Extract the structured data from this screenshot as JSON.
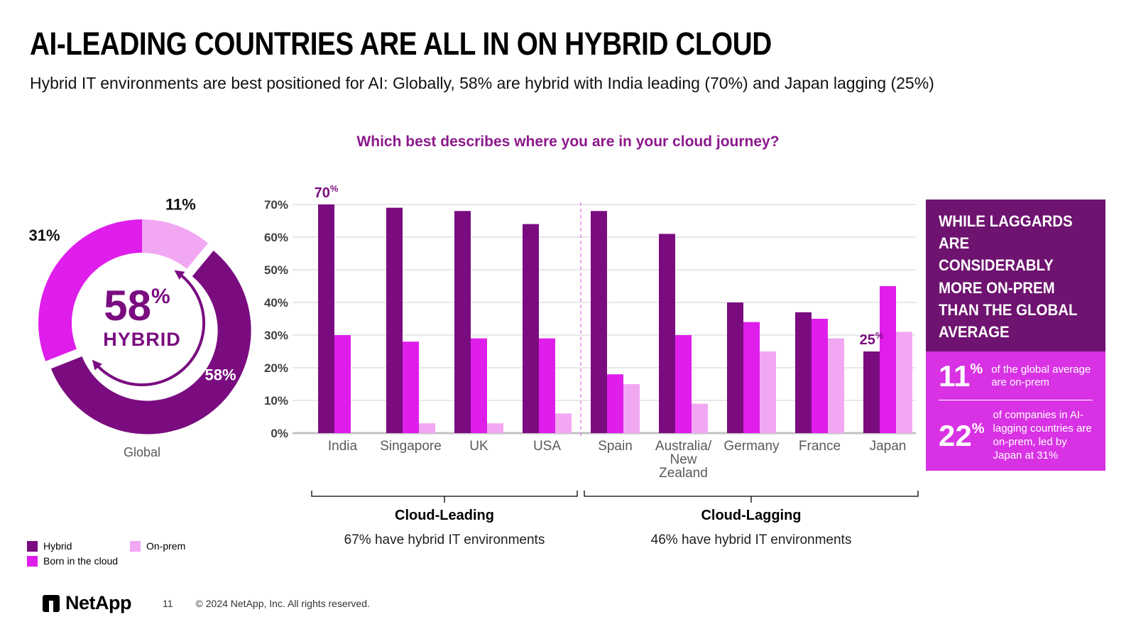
{
  "slide": {
    "title": "AI-LEADING COUNTRIES ARE ALL IN ON HYBRID CLOUD",
    "subtitle": "Hybrid IT environments are best positioned for AI: Globally, 58% are hybrid with India leading (70%) and Japan lagging (25%)"
  },
  "colors": {
    "hybrid": "#7A0C80",
    "born_in_the_cloud": "#DF1EEB",
    "on_prem": "#F2A7F2",
    "panel_header_bg": "#6E1370",
    "panel_body_bg": "#D832E4",
    "question_purple": "#8C188C"
  },
  "donut": {
    "caption": "Global",
    "center_value": "58",
    "center_sup": "%",
    "center_label": "HYBRID",
    "segments": [
      {
        "label": "On-prem",
        "value": 11,
        "color": "#F2A7F2",
        "callout": {
          "text": "11%",
          "angle": 18,
          "r": 176,
          "color": "#111111"
        }
      },
      {
        "label": "Hybrid",
        "value": 58,
        "color": "#7A0C80",
        "exploded": true,
        "callout": {
          "text": "58%",
          "angle": 121,
          "r": 120,
          "color": "#FFFFFF"
        }
      },
      {
        "label": "Born in the cloud",
        "value": 31,
        "color": "#DF1EEB",
        "callout": {
          "text": "31%",
          "angle": 312,
          "r": 185,
          "color": "#111111"
        }
      }
    ]
  },
  "chart_data": {
    "type": "bar",
    "title": "Which best describes where you are in your cloud journey?",
    "categories": [
      {
        "label": "India",
        "lines": [
          "India"
        ]
      },
      {
        "label": "Singapore",
        "lines": [
          "Singapore"
        ]
      },
      {
        "label": "UK",
        "lines": [
          "UK"
        ]
      },
      {
        "label": "USA",
        "lines": [
          "USA"
        ]
      },
      {
        "label": "Spain",
        "lines": [
          "Spain"
        ]
      },
      {
        "label": "Australia/New Zealand",
        "lines": [
          "Australia/",
          "New",
          "Zealand"
        ]
      },
      {
        "label": "Germany",
        "lines": [
          "Germany"
        ]
      },
      {
        "label": "France",
        "lines": [
          "France"
        ]
      },
      {
        "label": "Japan",
        "lines": [
          "Japan"
        ]
      }
    ],
    "series": [
      {
        "name": "Hybrid",
        "color": "#7A0C80",
        "values": [
          70,
          69,
          68,
          64,
          68,
          61,
          40,
          37,
          25
        ]
      },
      {
        "name": "Born in the cloud",
        "color": "#DF1EEB",
        "values": [
          30,
          28,
          29,
          29,
          18,
          30,
          34,
          35,
          45
        ]
      },
      {
        "name": "On-prem",
        "color": "#F2A7F2",
        "values": [
          0,
          3,
          3,
          6,
          15,
          9,
          25,
          29,
          31
        ]
      }
    ],
    "ylim": [
      0,
      70
    ],
    "grid": true,
    "legend_position": "bottom-left",
    "yticks": [
      {
        "v": 0,
        "label": "0%"
      },
      {
        "v": 10,
        "label": "10%"
      },
      {
        "v": 20,
        "label": "20%"
      },
      {
        "v": 30,
        "label": "30%"
      },
      {
        "v": 40,
        "label": "40%"
      },
      {
        "v": 50,
        "label": "50%"
      },
      {
        "v": 60,
        "label": "60%"
      },
      {
        "v": 70,
        "label": "70%"
      }
    ],
    "callouts": [
      {
        "category": 0,
        "series": 0,
        "value": "70",
        "sup": "%"
      },
      {
        "category": 8,
        "series": 0,
        "value": "25",
        "sup": "%"
      }
    ],
    "groups": [
      {
        "from": 0,
        "to": 3,
        "label": "Cloud-Leading",
        "note": "67% have hybrid IT environments"
      },
      {
        "from": 4,
        "to": 8,
        "label": "Cloud-Lagging",
        "note": "46% have hybrid IT environments"
      }
    ]
  },
  "panel": {
    "header": "WHILE LAGGARDS ARE CONSIDERABLY MORE ON-PREM THAN THE GLOBAL AVERAGE",
    "stats": [
      {
        "value": "11",
        "sup": "%",
        "text": "of the global average are on-prem"
      },
      {
        "value": "22",
        "sup": "%",
        "text": "of companies in AI-lagging countries are on-prem, led by Japan at 31%"
      }
    ]
  },
  "legend": {
    "items": [
      {
        "label": "Hybrid",
        "color": "#7A0C80"
      },
      {
        "label": "On-prem",
        "color": "#F2A7F2"
      },
      {
        "label": "Born in the cloud",
        "color": "#DF1EEB"
      }
    ]
  },
  "footer": {
    "brand": "NetApp",
    "page": "11",
    "copyright": "© 2024 NetApp, Inc. All rights reserved."
  }
}
